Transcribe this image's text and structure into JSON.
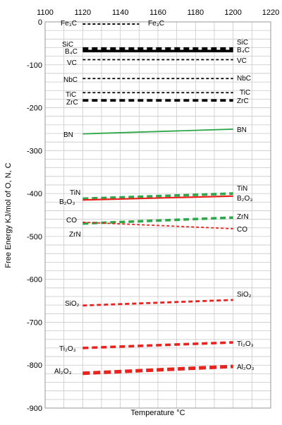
{
  "chart_data": {
    "type": "line",
    "xlabel": "Temperature °C",
    "ylabel": "Free Energy  KJ/mol of O, N, C",
    "xlim": [
      1100,
      1220
    ],
    "ylim": [
      -900,
      0
    ],
    "x_ticks": [
      "1100",
      "1120",
      "1140",
      "1160",
      "1180",
      "1200",
      "1220"
    ],
    "y_ticks": [
      "0",
      "-100",
      "-200",
      "-300",
      "-400",
      "-500",
      "-600",
      "-700",
      "-800",
      "-900"
    ],
    "grid": true,
    "series": [
      {
        "name": "Fe3C",
        "left_label": "Fe₃C",
        "right_label": "Fe₃C",
        "color": "#000000",
        "style": "dashed-thin",
        "x": [
          1120,
          1150
        ],
        "y": [
          -5,
          -5
        ]
      },
      {
        "name": "SiC",
        "left_label": "SiC",
        "right_label": "SiC",
        "color": "#000000",
        "style": "dashed-thick",
        "x": [
          1120,
          1200
        ],
        "y": [
          -62,
          -62
        ]
      },
      {
        "name": "B4C",
        "left_label": "B₄C",
        "right_label": "B₄C",
        "color": "#000000",
        "style": "solid-thick",
        "x": [
          1120,
          1200
        ],
        "y": [
          -68,
          -68
        ]
      },
      {
        "name": "VC",
        "left_label": "VC",
        "right_label": "VC",
        "color": "#000000",
        "style": "dashed-thin",
        "x": [
          1120,
          1200
        ],
        "y": [
          -88,
          -88
        ]
      },
      {
        "name": "NbC",
        "left_label": "NbC",
        "right_label": "NbC",
        "color": "#000000",
        "style": "dashed-thin",
        "x": [
          1120,
          1200
        ],
        "y": [
          -132,
          -132
        ]
      },
      {
        "name": "TiC",
        "left_label": "TiC",
        "right_label": "TiC",
        "color": "#000000",
        "style": "dashed-thin",
        "x": [
          1120,
          1200
        ],
        "y": [
          -165,
          -165
        ]
      },
      {
        "name": "ZrC",
        "left_label": "ZrC",
        "right_label": "ZrC",
        "color": "#000000",
        "style": "dashed-thick",
        "x": [
          1120,
          1200
        ],
        "y": [
          -183,
          -183
        ]
      },
      {
        "name": "BN",
        "left_label": "BN",
        "right_label": "BN",
        "color": "#2ea84a",
        "style": "solid-thin",
        "x": [
          1120,
          1200
        ],
        "y": [
          -261,
          -250
        ]
      },
      {
        "name": "TiN",
        "left_label": "TiN",
        "right_label": "TiN",
        "color": "#2ea84a",
        "style": "dashed-thick",
        "x": [
          1120,
          1200
        ],
        "y": [
          -412,
          -400
        ]
      },
      {
        "name": "B2O3",
        "left_label": "B₂O₃",
        "right_label": "B₂O₃",
        "color": "#e8221c",
        "style": "solid-mid",
        "x": [
          1120,
          1200
        ],
        "y": [
          -415,
          -406
        ]
      },
      {
        "name": "ZrN",
        "left_label": "ZrN",
        "right_label": "ZrN",
        "color": "#2ea84a",
        "style": "dashed-thick",
        "x": [
          1120,
          1200
        ],
        "y": [
          -470,
          -456
        ]
      },
      {
        "name": "CO",
        "left_label": "CO",
        "right_label": "CO",
        "color": "#e8221c",
        "style": "dashed-thin",
        "x": [
          1120,
          1200
        ],
        "y": [
          -467,
          -482
        ]
      },
      {
        "name": "SiO2",
        "left_label": "SiO₂",
        "right_label": "SiO₂",
        "color": "#e8221c",
        "style": "dashed-mid",
        "x": [
          1120,
          1200
        ],
        "y": [
          -661,
          -648
        ]
      },
      {
        "name": "Ti2O3",
        "left_label": "Ti₂O₃",
        "right_label": "Ti₂O₃",
        "color": "#e8221c",
        "style": "dashed-thick",
        "x": [
          1120,
          1200
        ],
        "y": [
          -760,
          -747
        ]
      },
      {
        "name": "Al2O3",
        "left_label": "Al₂O₃",
        "right_label": "Al₂O₃",
        "color": "#e8221c",
        "style": "dashed-xthick",
        "x": [
          1120,
          1200
        ],
        "y": [
          -819,
          -803
        ]
      }
    ]
  }
}
